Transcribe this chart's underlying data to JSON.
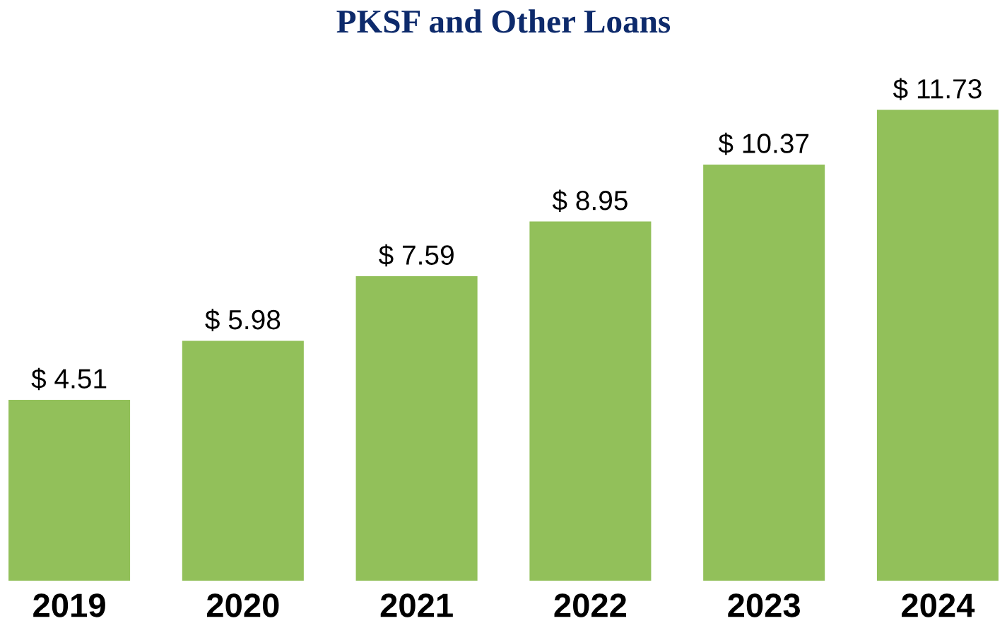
{
  "chart_data": {
    "type": "bar",
    "title": "PKSF and Other Loans",
    "categories": [
      "2019",
      "2020",
      "2021",
      "2022",
      "2023",
      "2024"
    ],
    "values": [
      4.51,
      5.98,
      7.59,
      8.95,
      10.37,
      11.73
    ],
    "value_labels": [
      "$ 4.51",
      "$ 5.98",
      "$ 7.59",
      "$ 8.95",
      "$ 10.37",
      "$ 11.73"
    ],
    "color": "#92c05a",
    "grid": false,
    "legend": false
  }
}
